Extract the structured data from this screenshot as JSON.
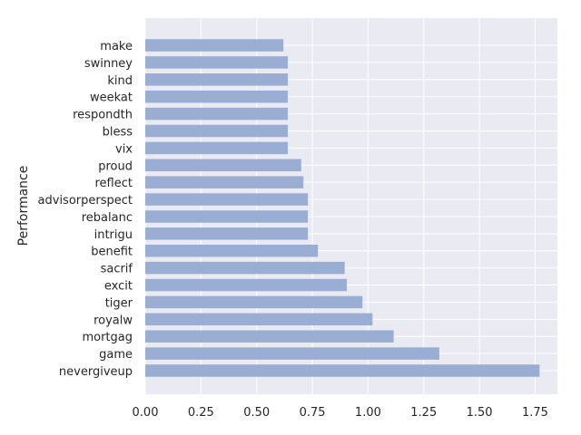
{
  "chart_data": {
    "type": "bar",
    "orientation": "horizontal",
    "title": "",
    "xlabel": "",
    "ylabel": "Performance",
    "xlim": [
      0,
      1.85
    ],
    "xticks": [
      0.0,
      0.25,
      0.5,
      0.75,
      1.0,
      1.25,
      1.5,
      1.75
    ],
    "xtick_labels": [
      "0.00",
      "0.25",
      "0.50",
      "0.75",
      "1.00",
      "1.25",
      "1.50",
      "1.75"
    ],
    "grid": true,
    "bar_color": "#9aadd3",
    "background_color": "#eaeaf2",
    "grid_color": "#ffffff",
    "categories": [
      "make",
      "swinney",
      "kind",
      "weekat",
      "respondth",
      "bless",
      "vix",
      "proud",
      "reflect",
      "advisorperspect",
      "rebalanc",
      "intrigu",
      "benefit",
      "sacrif",
      "excit",
      "tiger",
      "royalw",
      "mortgag",
      "game",
      "nevergiveup"
    ],
    "values": [
      0.62,
      0.64,
      0.64,
      0.64,
      0.64,
      0.64,
      0.64,
      0.7,
      0.71,
      0.73,
      0.73,
      0.73,
      0.775,
      0.895,
      0.905,
      0.975,
      1.02,
      1.115,
      1.32,
      1.77
    ]
  }
}
